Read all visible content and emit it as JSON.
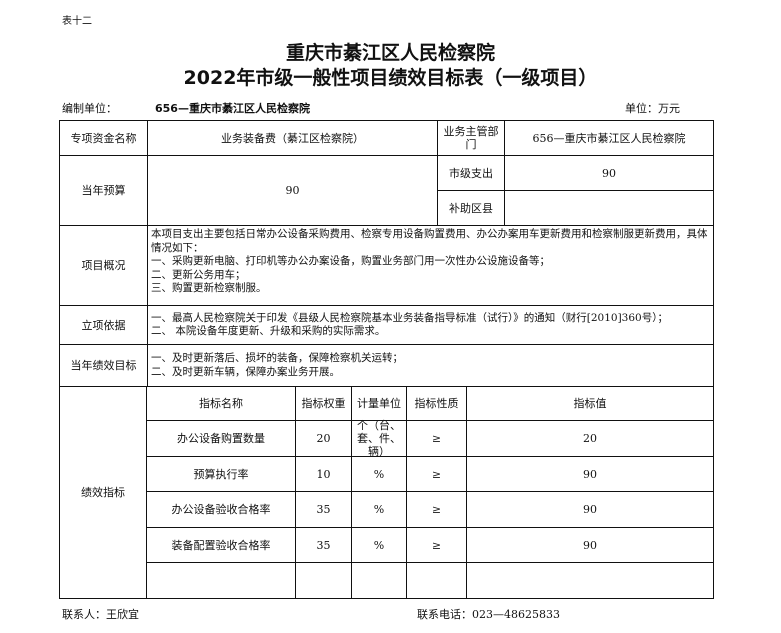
{
  "doc": {
    "table_no": "表十二",
    "title_line1": "重庆市綦江区人民检察院",
    "title_line2": "2022年市级一般性项目绩效目标表（一级项目）",
    "org_label": "编制单位：",
    "org_value": "656—重庆市綦江区人民检察院",
    "unit": "单位：万元"
  },
  "row1": {
    "label": "专项资金名称",
    "value": "业务装备费（綦江区检察院）",
    "dept_label": "业务主管部门",
    "dept_value": "656—重庆市綦江区人民检察院"
  },
  "budget": {
    "label": "当年预算",
    "value": "90",
    "city_label": "市级支出",
    "city_value": "90",
    "subsidy_label": "补助区县",
    "subsidy_value": ""
  },
  "overview": {
    "label": "项目概况",
    "lines": [
      "本项目支出主要包括日常办公设备采购费用、检察专用设备购置费用、办公办案用车更新费用和检察制服更新费用，具体情况如下：",
      "一、采购更新电脑、打印机等办公办案设备，购置业务部门用一次性办公设施设备等；",
      "二、更新公务用车；",
      "三、购置更新检察制服。"
    ]
  },
  "basis": {
    "label": "立项依据",
    "lines": [
      "一、最高人民检察院关于印发《县级人民检察院基本业务装备指导标准（试行）》的通知（财行[2010]360号）；",
      "二、  本院设备年度更新、升级和采购的实际需求。"
    ]
  },
  "goals": {
    "label": "当年绩效目标",
    "lines": [
      "一、及时更新落后、损坏的装备，保障检察机关运转；",
      "二、及时更新车辆，保障办案业务开展。"
    ]
  },
  "indicators": {
    "label": "绩效指标",
    "headers": [
      "指标名称",
      "指标权重",
      "计量单位",
      "指标性质",
      "指标值"
    ],
    "rows": [
      [
        "办公设备购置数量",
        "20",
        "个（台、套、件、辆）",
        "≥",
        "20"
      ],
      [
        "预算执行率",
        "10",
        "%",
        "≥",
        "90"
      ],
      [
        "办公设备验收合格率",
        "35",
        "%",
        "≥",
        "90"
      ],
      [
        "装备配置验收合格率",
        "35",
        "%",
        "≥",
        "90"
      ],
      [
        "",
        "",
        "",
        "",
        ""
      ]
    ]
  },
  "footer": {
    "contact": "联系人：王欣宜",
    "phone": "联系电话：023—48625833"
  }
}
